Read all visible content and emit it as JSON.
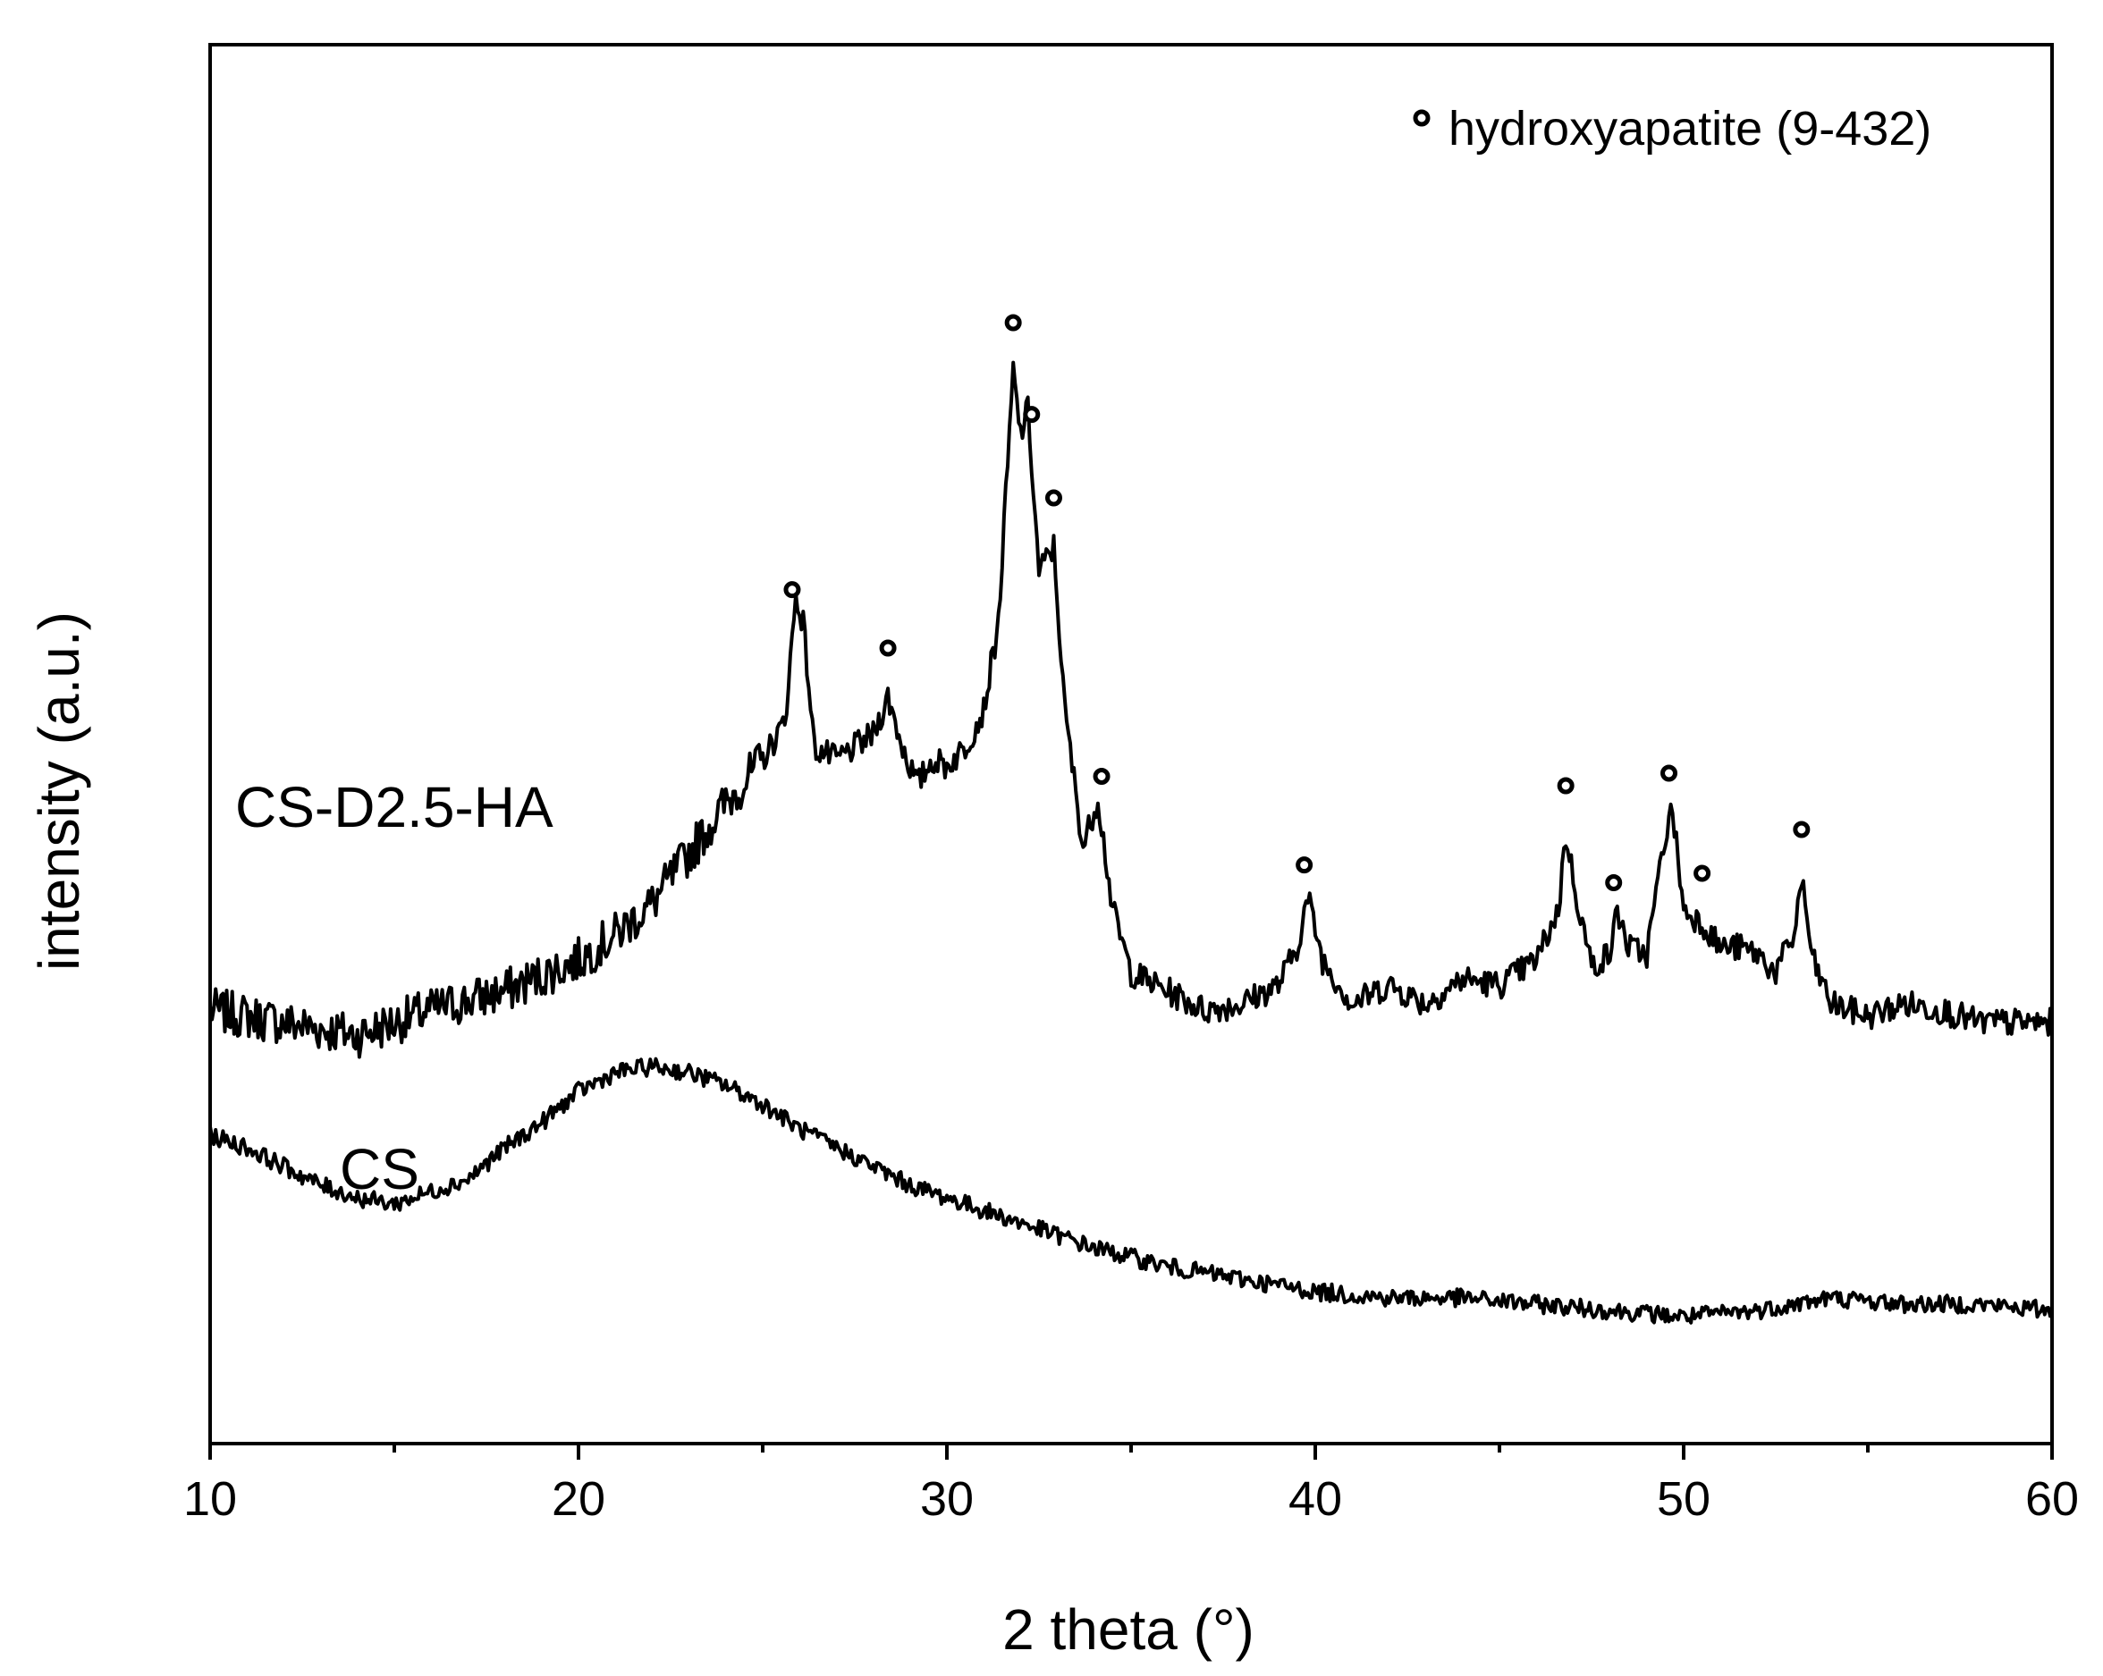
{
  "chart_data": {
    "type": "line",
    "xlabel": "2 theta (°)",
    "ylabel": "intensity (a.u.)",
    "xlim": [
      10,
      60
    ],
    "x_ticks": [
      10,
      20,
      30,
      40,
      50,
      60
    ],
    "x_minor_ticks": [
      15,
      25,
      35,
      45,
      55
    ],
    "y_ticks_shown": false,
    "grid": false,
    "legend": {
      "position": "top-right",
      "marker": "open-circle",
      "label": "hydroxyapatite (9-432)"
    },
    "series": [
      {
        "name": "CS-D2.5-HA",
        "points": [
          [
            10,
            0.3
          ],
          [
            12,
            0.28
          ],
          [
            14,
            0.26
          ],
          [
            16,
            0.3
          ],
          [
            18,
            0.33
          ],
          [
            20,
            0.38
          ],
          [
            21,
            0.42
          ],
          [
            22,
            0.47
          ],
          [
            23,
            0.55
          ],
          [
            24,
            0.63
          ],
          [
            25,
            0.7
          ],
          [
            25.6,
            0.76
          ],
          [
            25.9,
            0.96
          ],
          [
            26.1,
            0.92
          ],
          [
            26.4,
            0.72
          ],
          [
            27.0,
            0.7
          ],
          [
            27.5,
            0.72
          ],
          [
            28.0,
            0.74
          ],
          [
            28.4,
            0.8
          ],
          [
            28.8,
            0.72
          ],
          [
            29.2,
            0.66
          ],
          [
            29.6,
            0.7
          ],
          [
            30.0,
            0.69
          ],
          [
            30.5,
            0.72
          ],
          [
            31.0,
            0.78
          ],
          [
            31.4,
            0.92
          ],
          [
            31.8,
            1.32
          ],
          [
            32.0,
            1.22
          ],
          [
            32.2,
            1.26
          ],
          [
            32.5,
            1.0
          ],
          [
            32.9,
            1.04
          ],
          [
            33.2,
            0.78
          ],
          [
            33.7,
            0.56
          ],
          [
            34.1,
            0.64
          ],
          [
            34.5,
            0.46
          ],
          [
            35.0,
            0.36
          ],
          [
            36.0,
            0.33
          ],
          [
            37.0,
            0.3
          ],
          [
            38.0,
            0.31
          ],
          [
            39.0,
            0.34
          ],
          [
            39.5,
            0.4
          ],
          [
            39.8,
            0.48
          ],
          [
            40.2,
            0.38
          ],
          [
            41.0,
            0.31
          ],
          [
            42.0,
            0.34
          ],
          [
            43.0,
            0.31
          ],
          [
            44.0,
            0.35
          ],
          [
            45.0,
            0.34
          ],
          [
            46.0,
            0.38
          ],
          [
            46.6,
            0.46
          ],
          [
            46.8,
            0.58
          ],
          [
            47.1,
            0.48
          ],
          [
            47.5,
            0.37
          ],
          [
            48.0,
            0.39
          ],
          [
            48.2,
            0.46
          ],
          [
            48.5,
            0.4
          ],
          [
            49.0,
            0.39
          ],
          [
            49.5,
            0.58
          ],
          [
            49.7,
            0.62
          ],
          [
            50.0,
            0.46
          ],
          [
            50.5,
            0.44
          ],
          [
            51.0,
            0.4
          ],
          [
            51.5,
            0.4
          ],
          [
            52.0,
            0.39
          ],
          [
            52.5,
            0.36
          ],
          [
            53.0,
            0.42
          ],
          [
            53.2,
            0.51
          ],
          [
            53.5,
            0.38
          ],
          [
            54.0,
            0.31
          ],
          [
            55.0,
            0.29
          ],
          [
            56.0,
            0.31
          ],
          [
            57.0,
            0.3
          ],
          [
            58.0,
            0.28
          ],
          [
            59.0,
            0.28
          ],
          [
            60.0,
            0.28
          ]
        ],
        "peak_markers_x": [
          25.8,
          28.4,
          31.8,
          32.3,
          32.9,
          34.2,
          39.7,
          46.8,
          48.1,
          49.6,
          50.5,
          53.2
        ]
      },
      {
        "name": "CS",
        "points": [
          [
            10,
            0.1
          ],
          [
            11,
            0.08
          ],
          [
            12,
            0.05
          ],
          [
            13,
            0.02
          ],
          [
            14,
            0.0
          ],
          [
            15,
            -0.01
          ],
          [
            16,
            0.01
          ],
          [
            17,
            0.03
          ],
          [
            18,
            0.08
          ],
          [
            19,
            0.12
          ],
          [
            20,
            0.17
          ],
          [
            21,
            0.2
          ],
          [
            22,
            0.21
          ],
          [
            23,
            0.2
          ],
          [
            24,
            0.18
          ],
          [
            25,
            0.15
          ],
          [
            26,
            0.11
          ],
          [
            27,
            0.08
          ],
          [
            28,
            0.05
          ],
          [
            29,
            0.02
          ],
          [
            30,
            0.0
          ],
          [
            31,
            -0.02
          ],
          [
            32,
            -0.04
          ],
          [
            33,
            -0.06
          ],
          [
            34,
            -0.08
          ],
          [
            36,
            -0.11
          ],
          [
            38,
            -0.13
          ],
          [
            40,
            -0.15
          ],
          [
            42,
            -0.16
          ],
          [
            44,
            -0.16
          ],
          [
            46,
            -0.17
          ],
          [
            48,
            -0.18
          ],
          [
            50,
            -0.19
          ],
          [
            52,
            -0.18
          ],
          [
            54,
            -0.16
          ],
          [
            56,
            -0.17
          ],
          [
            58,
            -0.17
          ],
          [
            60,
            -0.18
          ]
        ]
      }
    ]
  }
}
